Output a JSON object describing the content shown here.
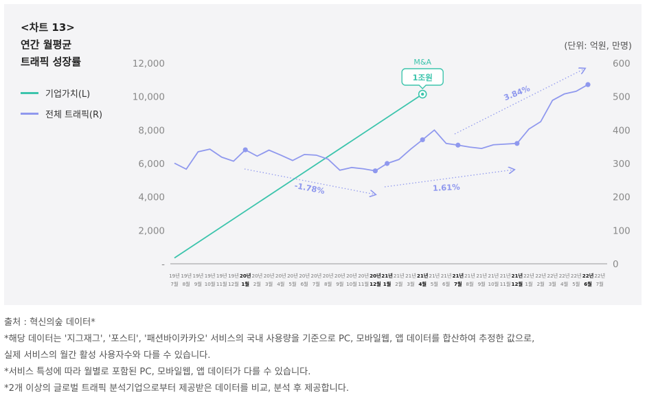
{
  "chart_title": [
    "<차트 13>",
    "연간 월평균",
    "트래픽 성장률"
  ],
  "unit_label": "(단위: 억원, 만명)",
  "colors": {
    "enterprise": "#3cc4ac",
    "traffic": "#8f98ee",
    "panel": "#f4f4f6"
  },
  "chart_data": {
    "type": "line",
    "title": "연간 월평균 트래픽 성장률",
    "x": [
      "19년 7월",
      "19년 8월",
      "19년 9월",
      "19년 10월",
      "19년 11월",
      "19년 12월",
      "20년 1월",
      "20년 2월",
      "20년 3월",
      "20년 4월",
      "20년 5월",
      "20년 6월",
      "20년 7월",
      "20년 8월",
      "20년 9월",
      "20년 10월",
      "20년 11월",
      "20년 12월",
      "21년 1월",
      "21년 2월",
      "21년 3월",
      "21년 4월",
      "21년 5월",
      "21년 6월",
      "21년 7월",
      "21년 8월",
      "21년 9월",
      "21년 10월",
      "21년 11월",
      "21년 12월",
      "22년 1월",
      "22년 2월",
      "22년 3월",
      "22년 4월",
      "22년 5월",
      "22년 6월",
      "22년 7월"
    ],
    "tick_year": [
      "19년",
      "19년",
      "19년",
      "19년",
      "19년",
      "19년",
      "20년",
      "20년",
      "20년",
      "20년",
      "20년",
      "20년",
      "20년",
      "20년",
      "20년",
      "20년",
      "20년",
      "20년",
      "21년",
      "21년",
      "21년",
      "21년",
      "21년",
      "21년",
      "21년",
      "21년",
      "21년",
      "21년",
      "21년",
      "21년",
      "22년",
      "22년",
      "22년",
      "22년",
      "22년",
      "22년",
      "22년"
    ],
    "tick_month": [
      "7월",
      "8월",
      "9월",
      "10월",
      "11월",
      "12월",
      "1월",
      "2월",
      "3월",
      "4월",
      "5월",
      "6월",
      "7월",
      "8월",
      "9월",
      "10월",
      "11월",
      "12월",
      "1월",
      "2월",
      "3월",
      "4월",
      "5월",
      "6월",
      "7월",
      "8월",
      "9월",
      "10월",
      "11월",
      "12월",
      "1월",
      "2월",
      "3월",
      "4월",
      "5월",
      "6월",
      "7월"
    ],
    "bold_ticks": [
      6,
      17,
      18,
      21,
      24,
      29,
      35
    ],
    "y_left": {
      "ticks": [
        "12,000",
        "10,000",
        "8,000",
        "6,000",
        "4,000",
        "2,000",
        "-"
      ],
      "values": [
        12000,
        10000,
        8000,
        6000,
        4000,
        2000,
        0
      ],
      "range": [
        0,
        12000
      ]
    },
    "y_right": {
      "ticks": [
        "600",
        "500",
        "400",
        "300",
        "200",
        "100",
        "0"
      ],
      "values": [
        600,
        500,
        400,
        300,
        200,
        100,
        0
      ],
      "range": [
        0,
        600
      ]
    },
    "series": [
      {
        "name": "기업가치(L)",
        "axis": "left",
        "points": [
          [
            0,
            350
          ],
          [
            21,
            10150
          ]
        ]
      },
      {
        "name": "전체 트래픽(R)",
        "axis": "right",
        "values": [
          301,
          283,
          335,
          343,
          319,
          307,
          341,
          322,
          340,
          325,
          309,
          327,
          325,
          313,
          280,
          288,
          284,
          278,
          300,
          312,
          343,
          371,
          400,
          360,
          355,
          349,
          345,
          356,
          358,
          360,
          403,
          425,
          489,
          508,
          516,
          536,
          null
        ],
        "markers": [
          6,
          17,
          18,
          21,
          24,
          29,
          35
        ]
      }
    ],
    "annotations": [
      {
        "text": "M&A",
        "x_index": 21
      },
      {
        "text": "1조원",
        "x_index": 21
      },
      {
        "text": "-1.78%",
        "from_index": 6,
        "to_index": 17
      },
      {
        "text": "1.61%",
        "from_index": 18,
        "to_index": 29
      },
      {
        "text": "3.84%",
        "from_index": 24,
        "to_index": 35
      }
    ]
  },
  "legend": [
    {
      "label": "기업가치(L)",
      "color": "#3cc4ac"
    },
    {
      "label": "전체 트래픽(R)",
      "color": "#8f98ee"
    }
  ],
  "notes": [
    "출처 : 혁신의숲 데이터*",
    "*해당 데이터는 '지그재그', '포스티', '패션바이카카오' 서비스의 국내 사용량을 기준으로 PC, 모바일웹, 앱 데이터를 합산하여 추정한 값으로,",
    "실제 서비스의 월간 활성 사용자수와 다를 수 있습니다.",
    "*서비스 특성에 따라 월별로 포함된 PC, 모바일웹, 앱 데이터가 다를 수 있습니다.",
    "*2개 이상의 글로벌 트래픽 분석기업으로부터 제공받은 데이터를 비교, 분석 후 제공합니다."
  ]
}
